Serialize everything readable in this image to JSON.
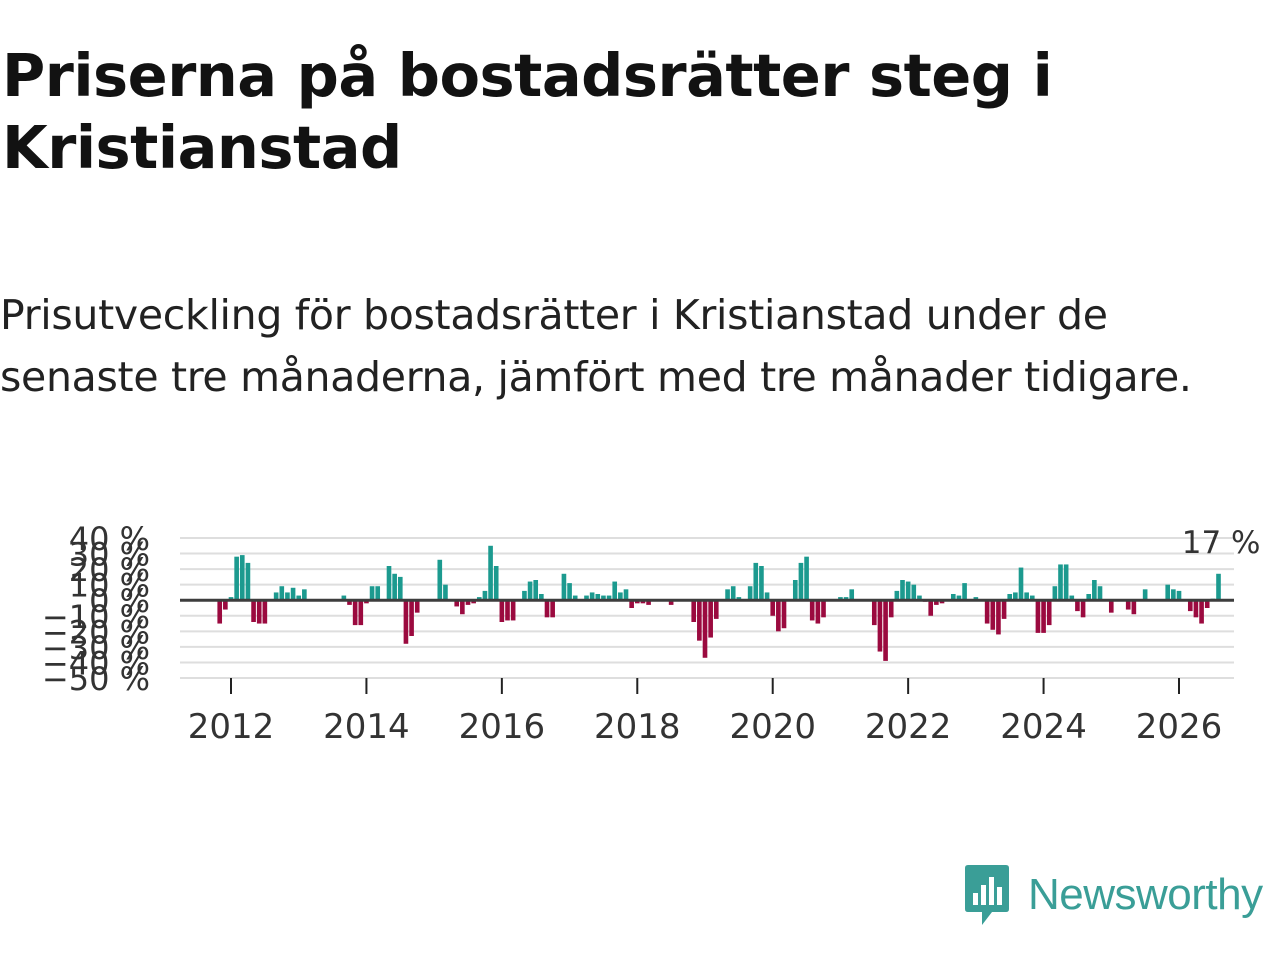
{
  "title": "Priserna på bostadsrätter steg i Kristianstad",
  "subtitle": "Prisutveckling för bostadsrätter i Kristianstad under de senaste tre månaderna, jämfört med tre månader tidigare.",
  "brand": {
    "name": "Newsworthy",
    "logo_icon": "newsworthy-bar-chart-icon",
    "color": "#3a9e97"
  },
  "chart_data": {
    "type": "bar",
    "title": "",
    "xlabel": "",
    "ylabel": "",
    "x_start": "2011-11",
    "frequency": "monthly",
    "ylim": [
      -50,
      40
    ],
    "yticks": [
      40,
      30,
      20,
      10,
      0,
      -10,
      -20,
      -30,
      -40,
      -50
    ],
    "ytick_labels": [
      "40 %",
      "30 %",
      "20 %",
      "10 %",
      "0 %",
      "−10 %",
      "−20 %",
      "−30 %",
      "−40 %",
      "−50 %"
    ],
    "xticks": [
      "2012",
      "2014",
      "2016",
      "2018",
      "2020",
      "2022",
      "2024",
      "2026"
    ],
    "positive_color": "#1c9a8f",
    "negative_color": "#9b0a3f",
    "last_value_label": "17 %",
    "values": [
      -15,
      -6,
      2,
      28,
      29,
      24,
      -14,
      -15,
      -15,
      0,
      5,
      9,
      5,
      8,
      3,
      7,
      0,
      0,
      0,
      0,
      0,
      0,
      3,
      -3,
      -16,
      -16,
      -2,
      9,
      9,
      0,
      22,
      17,
      15,
      -28,
      -23,
      -8,
      0,
      0,
      0,
      26,
      10,
      0,
      -4,
      -9,
      -3,
      -2,
      2,
      6,
      35,
      22,
      -14,
      -13,
      -13,
      0,
      6,
      12,
      13,
      4,
      -11,
      -11,
      0,
      17,
      11,
      3,
      0,
      3,
      5,
      4,
      3,
      3,
      12,
      5,
      7,
      -5,
      -2,
      -2,
      -3,
      0,
      0,
      0,
      -3,
      0,
      0,
      0,
      -14,
      -26,
      -37,
      -24,
      -12,
      0,
      7,
      9,
      2,
      0,
      9,
      24,
      22,
      5,
      -10,
      -20,
      -18,
      0,
      13,
      24,
      28,
      -13,
      -15,
      -11,
      0,
      0,
      2,
      2,
      7,
      0,
      0,
      0,
      -16,
      -33,
      -39,
      -11,
      6,
      13,
      12,
      10,
      3,
      -1,
      -10,
      -3,
      -2,
      0,
      4,
      3,
      11,
      0,
      2,
      0,
      -15,
      -19,
      -22,
      -12,
      4,
      5,
      21,
      5,
      3,
      -21,
      -21,
      -16,
      9,
      23,
      23,
      3,
      -7,
      -11,
      4,
      13,
      9,
      0,
      -8,
      0,
      0,
      -6,
      -9,
      0,
      7,
      0,
      0,
      0,
      10,
      7,
      6,
      0,
      -7,
      -11,
      -15,
      -5,
      1,
      17
    ]
  }
}
